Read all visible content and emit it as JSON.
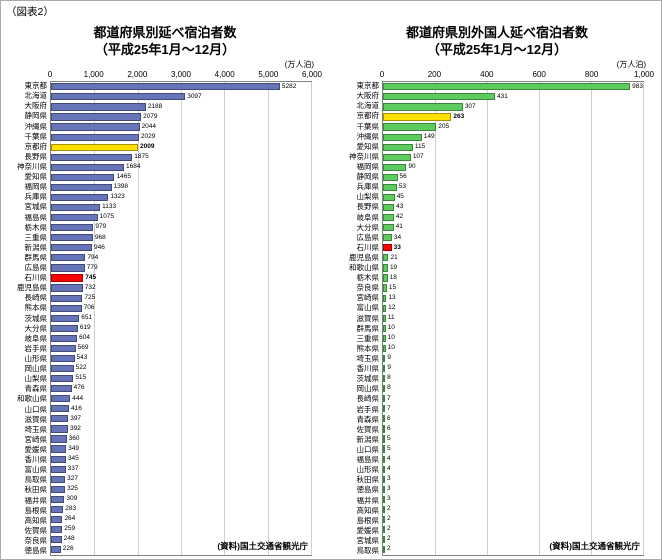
{
  "figure_label": "（図表2）",
  "chart_data": [
    {
      "type": "bar",
      "orientation": "horizontal",
      "title": "都道府県別延べ宿泊者数",
      "subtitle": "（平成25年1月～12月）",
      "unit": "(万人泊)",
      "source": "(資料)国土交通省観光庁",
      "xlim": [
        0,
        6000
      ],
      "xticks": [
        0,
        1000,
        2000,
        3000,
        4000,
        5000,
        6000
      ],
      "xtick_labels": [
        "0",
        "1,000",
        "2,000",
        "3,000",
        "4,000",
        "5,000",
        "6,000"
      ],
      "bar_color": "#6674b8",
      "grid": true,
      "legend": "none",
      "highlight_colors": {
        "京都府": "#ffdf00",
        "石川県": "#ff0000"
      },
      "categories": [
        "東京都",
        "北海道",
        "大阪府",
        "静岡県",
        "沖縄県",
        "千葉県",
        "京都府",
        "長野県",
        "神奈川県",
        "愛知県",
        "福岡県",
        "兵庫県",
        "宮城県",
        "福島県",
        "栃木県",
        "三重県",
        "新潟県",
        "群馬県",
        "広島県",
        "石川県",
        "鹿児島県",
        "長崎県",
        "熊本県",
        "茨城県",
        "大分県",
        "岐阜県",
        "岩手県",
        "山形県",
        "岡山県",
        "山梨県",
        "青森県",
        "和歌山県",
        "山口県",
        "滋賀県",
        "埼玉県",
        "宮崎県",
        "愛媛県",
        "香川県",
        "富山県",
        "鳥取県",
        "秋田県",
        "福井県",
        "島根県",
        "高知県",
        "佐賀県",
        "奈良県",
        "徳島県"
      ],
      "values": [
        5282,
        3097,
        2188,
        2079,
        2044,
        2029,
        2009,
        1875,
        1684,
        1465,
        1398,
        1323,
        1133,
        1075,
        979,
        968,
        946,
        794,
        779,
        745,
        732,
        725,
        706,
        651,
        619,
        604,
        569,
        543,
        522,
        515,
        476,
        444,
        416,
        397,
        392,
        360,
        349,
        345,
        337,
        327,
        325,
        309,
        283,
        264,
        259,
        248,
        226
      ]
    },
    {
      "type": "bar",
      "orientation": "horizontal",
      "title": "都道府県別外国人延べ宿泊者数",
      "subtitle": "（平成25年1月～12月）",
      "unit": "(万人泊)",
      "source": "(資料)国土交通省観光庁",
      "xlim": [
        0,
        1000
      ],
      "xticks": [
        0,
        200,
        400,
        600,
        800,
        1000
      ],
      "xtick_labels": [
        "0",
        "200",
        "400",
        "600",
        "800",
        "1,000"
      ],
      "bar_color": "#5ecb5e",
      "grid": true,
      "legend": "none",
      "highlight_colors": {
        "京都府": "#ffdf00",
        "石川県": "#ff0000"
      },
      "categories": [
        "東京都",
        "大阪府",
        "北海道",
        "京都府",
        "千葉県",
        "沖縄県",
        "愛知県",
        "神奈川県",
        "福岡県",
        "静岡県",
        "兵庫県",
        "山梨県",
        "長野県",
        "岐阜県",
        "大分県",
        "広島県",
        "石川県",
        "鹿児島県",
        "和歌山県",
        "栃木県",
        "奈良県",
        "宮崎県",
        "富山県",
        "滋賀県",
        "群馬県",
        "三重県",
        "熊本県",
        "埼玉県",
        "香川県",
        "茨城県",
        "岡山県",
        "長崎県",
        "岩手県",
        "青森県",
        "佐賀県",
        "新潟県",
        "山口県",
        "福島県",
        "山形県",
        "秋田県",
        "徳島県",
        "福井県",
        "高知県",
        "島根県",
        "愛媛県",
        "宮城県",
        "鳥取県"
      ],
      "values": [
        983,
        431,
        307,
        263,
        205,
        149,
        115,
        107,
        90,
        56,
        53,
        45,
        43,
        42,
        41,
        34,
        33,
        21,
        19,
        18,
        15,
        13,
        12,
        11,
        10,
        10,
        10,
        9,
        9,
        8,
        8,
        7,
        7,
        6,
        6,
        5,
        5,
        4,
        4,
        3,
        3,
        3,
        2,
        2,
        2,
        2,
        2
      ]
    }
  ]
}
